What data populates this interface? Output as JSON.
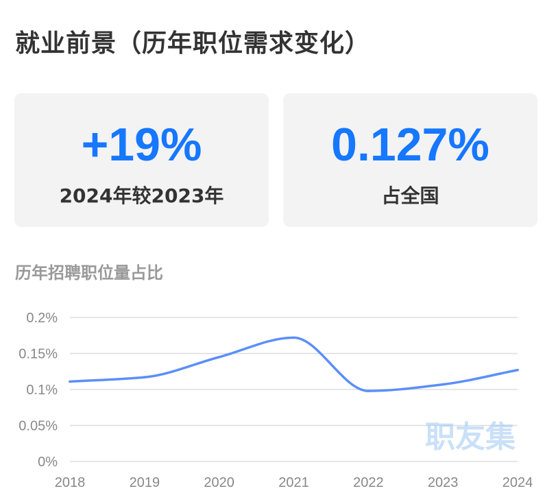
{
  "title": "就业前景（历年职位需求变化）",
  "cards": [
    {
      "value": "+19%",
      "label": "2024年较2023年"
    },
    {
      "value": "0.127%",
      "label": "占全国"
    }
  ],
  "chart_title": "历年招聘职位量占比",
  "watermark": "职友集",
  "colors": {
    "accent": "#1677ff",
    "line": "#5b8ff9",
    "grid": "#dddddd"
  },
  "chart_data": {
    "type": "line",
    "title": "历年招聘职位量占比",
    "categories": [
      "2018",
      "2019",
      "2020",
      "2021",
      "2022",
      "2023",
      "2024"
    ],
    "series": [
      {
        "values": [
          0.111,
          0.117,
          0.145,
          0.172,
          0.098,
          0.107,
          0.127
        ]
      }
    ],
    "y_unit": "%",
    "ylim": [
      0,
      0.2
    ],
    "yticks": [
      "0%",
      "0.05%",
      "0.1%",
      "0.15%",
      "0.2%"
    ],
    "grid": true,
    "legend": "none"
  }
}
